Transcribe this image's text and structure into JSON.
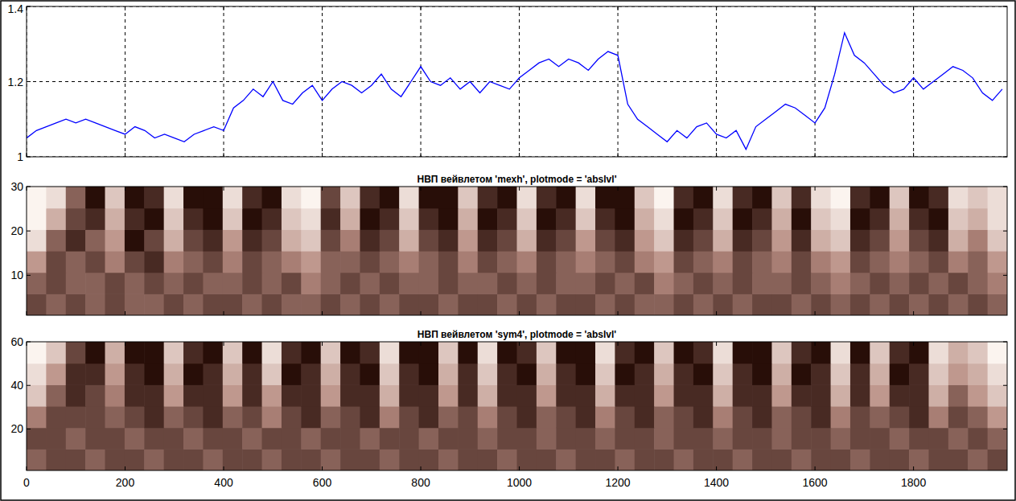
{
  "chart_data": [
    {
      "type": "line",
      "x": [
        0,
        20,
        40,
        60,
        80,
        100,
        120,
        140,
        160,
        180,
        200,
        220,
        240,
        260,
        280,
        300,
        320,
        340,
        360,
        380,
        400,
        420,
        440,
        460,
        480,
        500,
        520,
        540,
        560,
        580,
        600,
        620,
        640,
        660,
        680,
        700,
        720,
        740,
        760,
        780,
        800,
        820,
        840,
        860,
        880,
        900,
        920,
        940,
        960,
        980,
        1000,
        1020,
        1040,
        1060,
        1080,
        1100,
        1120,
        1140,
        1160,
        1180,
        1200,
        1220,
        1240,
        1260,
        1280,
        1300,
        1320,
        1340,
        1360,
        1380,
        1400,
        1420,
        1440,
        1460,
        1480,
        1500,
        1520,
        1540,
        1560,
        1580,
        1600,
        1620,
        1640,
        1660,
        1680,
        1700,
        1720,
        1740,
        1760,
        1780,
        1800,
        1820,
        1840,
        1860,
        1880,
        1900,
        1920,
        1940,
        1960,
        1980
      ],
      "series": [
        {
          "color": "#0000ff",
          "values": [
            1.05,
            1.07,
            1.08,
            1.09,
            1.1,
            1.09,
            1.1,
            1.09,
            1.08,
            1.07,
            1.06,
            1.08,
            1.07,
            1.05,
            1.06,
            1.05,
            1.04,
            1.06,
            1.07,
            1.08,
            1.07,
            1.13,
            1.15,
            1.18,
            1.16,
            1.2,
            1.15,
            1.14,
            1.17,
            1.19,
            1.15,
            1.18,
            1.2,
            1.19,
            1.17,
            1.19,
            1.22,
            1.18,
            1.16,
            1.2,
            1.24,
            1.2,
            1.19,
            1.21,
            1.18,
            1.2,
            1.17,
            1.2,
            1.19,
            1.18,
            1.21,
            1.23,
            1.25,
            1.26,
            1.24,
            1.26,
            1.25,
            1.23,
            1.26,
            1.28,
            1.27,
            1.14,
            1.1,
            1.08,
            1.06,
            1.04,
            1.07,
            1.05,
            1.08,
            1.09,
            1.06,
            1.05,
            1.07,
            1.02,
            1.08,
            1.1,
            1.12,
            1.14,
            1.13,
            1.11,
            1.09,
            1.13,
            1.22,
            1.33,
            1.27,
            1.25,
            1.22,
            1.19,
            1.17,
            1.18,
            1.21,
            1.18,
            1.2,
            1.22,
            1.24,
            1.23,
            1.21,
            1.17,
            1.15,
            1.18
          ]
        }
      ],
      "xlim": [
        0,
        1990
      ],
      "xticks": [
        0,
        200,
        400,
        600,
        800,
        1000,
        1200,
        1400,
        1600,
        1800
      ],
      "ylim": [
        1,
        1.4
      ],
      "yticks": [
        1,
        1.2,
        1.4
      ],
      "grid": true,
      "tick_labels": "y"
    },
    {
      "type": "heatmap",
      "title": "НВП вейвлетом 'mexh', plotmode = 'abslvl'",
      "xlim": [
        0,
        1990
      ],
      "xticks": [
        0,
        200,
        400,
        600,
        800,
        1000,
        1200,
        1400,
        1600,
        1800
      ],
      "ylim": [
        1,
        30
      ],
      "yticks": [
        10,
        20,
        30
      ],
      "clim": [
        0,
        9
      ],
      "grid": false,
      "tick_labels": "y",
      "cells": [
        [
          7,
          6,
          7,
          6,
          7,
          6,
          6,
          7,
          6,
          7,
          7,
          6,
          7,
          6,
          6,
          7,
          6,
          7,
          6,
          7,
          7,
          6,
          7,
          7,
          6,
          7,
          6,
          7,
          7,
          6,
          7,
          6,
          6,
          7,
          6,
          7,
          6,
          7,
          7,
          6,
          7,
          6,
          7,
          6,
          7,
          6,
          7,
          6,
          7,
          6
        ],
        [
          6,
          7,
          6,
          6,
          7,
          6,
          7,
          6,
          7,
          6,
          6,
          7,
          6,
          7,
          5,
          6,
          7,
          6,
          7,
          6,
          6,
          7,
          6,
          6,
          7,
          6,
          7,
          6,
          6,
          7,
          6,
          7,
          5,
          6,
          7,
          6,
          7,
          6,
          6,
          7,
          6,
          5,
          6,
          7,
          6,
          7,
          6,
          7,
          6,
          5
        ],
        [
          4,
          7,
          6,
          7,
          5,
          7,
          8,
          5,
          6,
          7,
          5,
          7,
          6,
          5,
          4,
          6,
          6,
          7,
          6,
          5,
          6,
          7,
          5,
          7,
          6,
          5,
          7,
          6,
          5,
          6,
          7,
          5,
          4,
          7,
          6,
          5,
          7,
          6,
          5,
          7,
          5,
          4,
          7,
          6,
          5,
          6,
          7,
          5,
          6,
          4
        ],
        [
          1,
          6,
          8,
          6,
          4,
          9,
          7,
          3,
          7,
          8,
          4,
          8,
          7,
          3,
          2,
          7,
          5,
          8,
          7,
          3,
          7,
          8,
          4,
          8,
          7,
          3,
          8,
          7,
          4,
          7,
          8,
          4,
          2,
          8,
          7,
          3,
          8,
          7,
          4,
          8,
          3,
          2,
          8,
          7,
          4,
          7,
          8,
          3,
          5,
          2
        ],
        [
          0,
          3,
          7,
          8,
          3,
          8,
          9,
          2,
          8,
          9,
          2,
          9,
          8,
          2,
          1,
          8,
          3,
          9,
          8,
          2,
          8,
          9,
          3,
          9,
          8,
          2,
          9,
          8,
          2,
          8,
          9,
          3,
          1,
          9,
          8,
          2,
          9,
          8,
          3,
          9,
          2,
          1,
          9,
          8,
          3,
          8,
          9,
          2,
          3,
          1
        ],
        [
          0,
          1,
          6,
          9,
          2,
          9,
          8,
          1,
          9,
          9,
          1,
          8,
          9,
          1,
          0,
          7,
          2,
          8,
          9,
          1,
          9,
          9,
          2,
          8,
          9,
          1,
          8,
          9,
          1,
          9,
          9,
          2,
          0,
          8,
          9,
          1,
          8,
          9,
          2,
          8,
          1,
          0,
          8,
          9,
          2,
          9,
          8,
          1,
          2,
          1
        ]
      ]
    },
    {
      "type": "heatmap",
      "title": "НВП вейвлетом 'sym4', plotmode = 'abslvl'",
      "xlim": [
        0,
        1990
      ],
      "xticks": [
        0,
        200,
        400,
        600,
        800,
        1000,
        1200,
        1400,
        1600,
        1800
      ],
      "ylim": [
        1,
        60
      ],
      "yticks": [
        20,
        40,
        60
      ],
      "clim": [
        0,
        9
      ],
      "grid": false,
      "tick_labels": true,
      "cells": [
        [
          6,
          7,
          7,
          6,
          7,
          7,
          6,
          7,
          7,
          6,
          7,
          7,
          6,
          7,
          7,
          6,
          7,
          7,
          6,
          7,
          7,
          6,
          7,
          7,
          6,
          7,
          7,
          6,
          7,
          7,
          6,
          7,
          7,
          6,
          7,
          7,
          6,
          7,
          7,
          6,
          7,
          7,
          6,
          7,
          7,
          6,
          7,
          7,
          6,
          7
        ],
        [
          7,
          7,
          6,
          7,
          7,
          6,
          7,
          7,
          6,
          7,
          7,
          6,
          7,
          7,
          6,
          7,
          7,
          6,
          7,
          7,
          6,
          7,
          7,
          6,
          7,
          7,
          6,
          7,
          7,
          6,
          7,
          7,
          6,
          7,
          7,
          6,
          7,
          7,
          6,
          7,
          7,
          6,
          7,
          7,
          6,
          7,
          7,
          6,
          7,
          6
        ],
        [
          5,
          7,
          7,
          7,
          6,
          7,
          8,
          6,
          7,
          8,
          6,
          7,
          5,
          7,
          8,
          6,
          7,
          8,
          5,
          7,
          8,
          6,
          7,
          5,
          7,
          8,
          6,
          7,
          8,
          5,
          7,
          8,
          6,
          7,
          8,
          5,
          7,
          8,
          6,
          7,
          8,
          5,
          7,
          6,
          7,
          8,
          5,
          7,
          6,
          4
        ],
        [
          2,
          6,
          8,
          7,
          5,
          8,
          8,
          4,
          8,
          8,
          4,
          8,
          4,
          8,
          8,
          4,
          8,
          8,
          3,
          8,
          8,
          4,
          8,
          3,
          8,
          8,
          4,
          8,
          8,
          3,
          8,
          8,
          4,
          8,
          8,
          3,
          8,
          8,
          4,
          8,
          8,
          3,
          8,
          4,
          8,
          8,
          3,
          6,
          4,
          2
        ],
        [
          1,
          4,
          8,
          8,
          4,
          8,
          9,
          3,
          9,
          8,
          3,
          8,
          2,
          9,
          8,
          3,
          8,
          9,
          2,
          8,
          9,
          3,
          8,
          2,
          8,
          9,
          3,
          8,
          9,
          2,
          9,
          8,
          3,
          8,
          9,
          2,
          8,
          9,
          3,
          9,
          8,
          2,
          8,
          3,
          9,
          8,
          2,
          4,
          3,
          1
        ],
        [
          0,
          2,
          7,
          9,
          3,
          9,
          9,
          2,
          8,
          9,
          2,
          9,
          1,
          8,
          9,
          2,
          9,
          8,
          1,
          9,
          9,
          2,
          9,
          1,
          9,
          8,
          2,
          9,
          9,
          1,
          8,
          9,
          2,
          9,
          8,
          1,
          9,
          9,
          2,
          8,
          9,
          1,
          9,
          2,
          8,
          9,
          1,
          3,
          2,
          0
        ]
      ]
    }
  ]
}
